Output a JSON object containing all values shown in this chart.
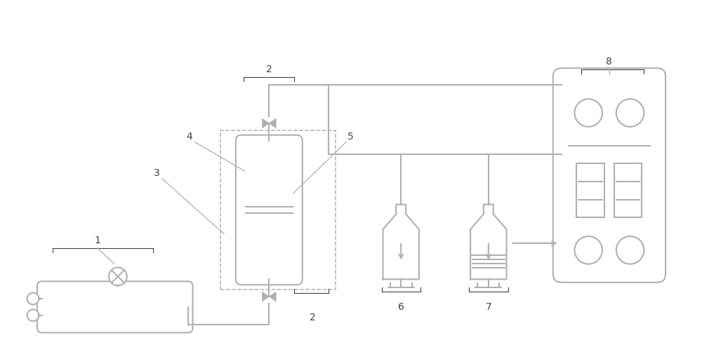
{
  "bg_color": "#ffffff",
  "line_color": "#b0b0b0",
  "line_width": 1.5,
  "text_color": "#404040",
  "fig_width": 10.0,
  "fig_height": 5.06
}
